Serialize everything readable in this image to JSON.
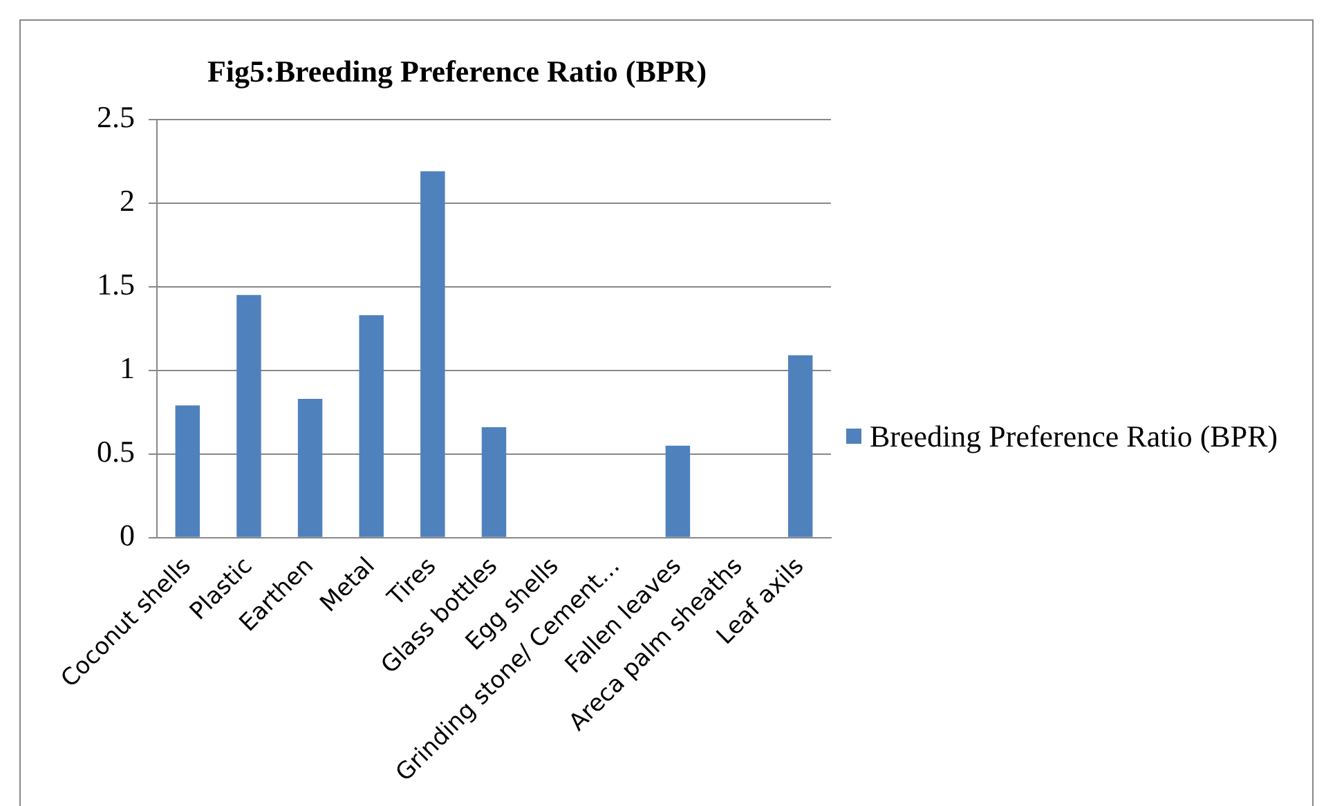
{
  "chart_data": {
    "type": "bar",
    "title": "Fig5:Breeding Preference Ratio (BPR)",
    "categories": [
      "Coconut shells",
      "Plastic",
      "Earthen",
      "Metal",
      "Tires",
      "Glass bottles",
      "Egg shells",
      "Grinding stone/ Cement…",
      "Fallen leaves",
      "Areca palm sheaths",
      "Leaf axils"
    ],
    "series": [
      {
        "name": "Breeding Preference Ratio (BPR)",
        "color": "#4f81bd",
        "values": [
          0.79,
          1.45,
          0.83,
          1.33,
          2.19,
          0.66,
          0,
          0,
          0.55,
          0,
          1.09
        ]
      }
    ],
    "ylim": [
      0,
      2.5
    ],
    "yticks": [
      0,
      0.5,
      1,
      1.5,
      2,
      2.5
    ],
    "grid": "y",
    "legend": "right"
  }
}
